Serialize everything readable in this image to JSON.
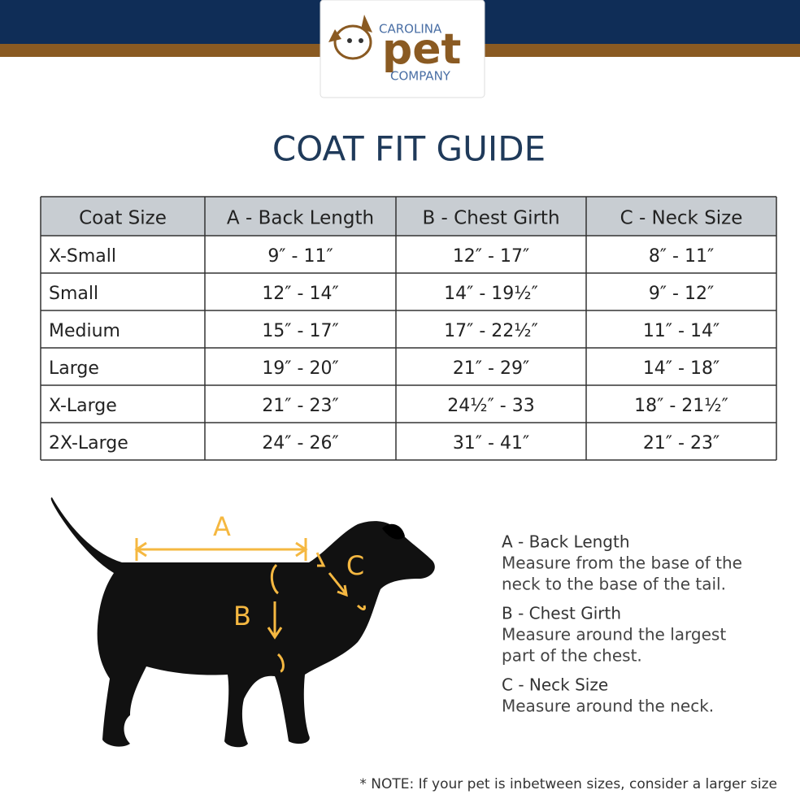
{
  "header": {
    "logo": {
      "line1": "CAROLINA",
      "line2": "pet",
      "line3": "COMPANY"
    }
  },
  "title": "COAT FIT GUIDE",
  "table": {
    "headers": [
      "Coat Size",
      "A - Back Length",
      "B - Chest Girth",
      "C - Neck Size"
    ],
    "rows": [
      [
        "X-Small",
        "9″ - 11″",
        "12″ - 17″",
        "8″ - 11″"
      ],
      [
        "Small",
        "12″ - 14″",
        "14″ - 19½″",
        "9″ - 12″"
      ],
      [
        "Medium",
        "15″ - 17″",
        "17″ - 22½″",
        "11″ - 14″"
      ],
      [
        "Large",
        "19″ - 20″",
        "21″ - 29″",
        "14″ - 18″"
      ],
      [
        "X-Large",
        "21″ - 23″",
        "24½″ - 33",
        "18″ - 21½″"
      ],
      [
        "2X-Large",
        "24″ - 26″",
        "31″ - 41″",
        "21″ - 23″"
      ]
    ]
  },
  "diagram": {
    "labels": [
      "A",
      "B",
      "C"
    ]
  },
  "legend": [
    {
      "term": "A - Back Length",
      "text": [
        "Measure from the base of the",
        "neck to the base of the tail."
      ]
    },
    {
      "term": "B - Chest Girth",
      "text": [
        "Measure around the largest",
        "part of the chest."
      ]
    },
    {
      "term": "C - Neck Size",
      "text": [
        "Measure around the neck."
      ]
    }
  ],
  "note": "* NOTE: If your pet is inbetween sizes, consider a larger size"
}
